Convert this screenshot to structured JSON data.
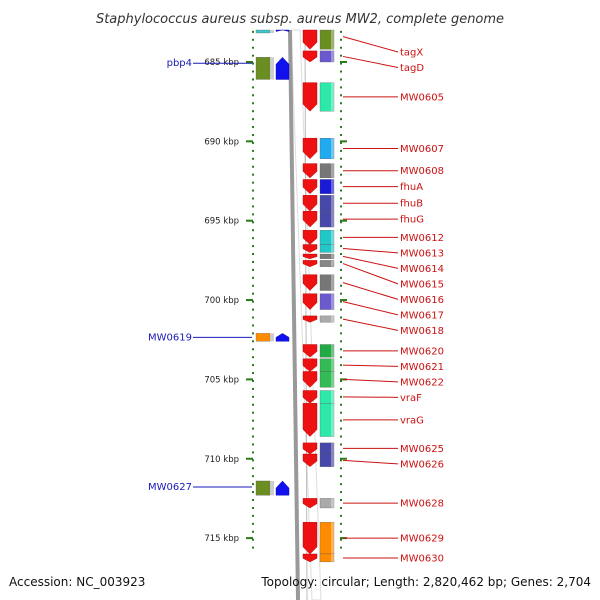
{
  "title": "Staphylococcus aureus subsp. aureus MW2, complete genome",
  "footer": {
    "accession": "Accession: NC_003923",
    "summary": "Topology: circular; Length: 2,820,462 bp; Genes: 2,704"
  },
  "axis": {
    "start_kbp": 682.6,
    "end_kbp": 715.8,
    "ticks": [
      {
        "kbp": 685,
        "label": "685 kbp"
      },
      {
        "kbp": 690,
        "label": "690 kbp"
      },
      {
        "kbp": 695,
        "label": "695 kbp"
      },
      {
        "kbp": 700,
        "label": "700 kbp"
      },
      {
        "kbp": 705,
        "label": "705 kbp"
      },
      {
        "kbp": 710,
        "label": "710 kbp"
      },
      {
        "kbp": 715,
        "label": "715 kbp"
      }
    ]
  },
  "colors": {
    "forward_label": "#1a1ab8",
    "reverse_label": "#cc1111",
    "cds": "#ee1111",
    "forward_cds": "#1111ee",
    "tick": "#2a7a1a",
    "backbone": "#999999"
  },
  "forward_genes": [
    {
      "name": "",
      "start": 682.6,
      "end": 682.9,
      "cog": "#3cc8c8"
    },
    {
      "name": "pbp4",
      "start": 684.7,
      "end": 686.1,
      "cog": "#6b8e23"
    },
    {
      "name": "MW0619",
      "start": 702.1,
      "end": 702.6,
      "cog": "#ff8c00"
    },
    {
      "name": "MW0627",
      "start": 711.4,
      "end": 712.3,
      "cog": "#6b8e23"
    }
  ],
  "reverse_genes": [
    {
      "name": "tagX",
      "start": 682.6,
      "end": 684.2,
      "cog": "#6b8e23"
    },
    {
      "name": "tagD",
      "start": 684.3,
      "end": 685.0,
      "cog": "#6a5acd"
    },
    {
      "name": "MW0605",
      "start": 686.3,
      "end": 688.1,
      "cog": "#2de8a8"
    },
    {
      "name": "MW0607",
      "start": 689.8,
      "end": 691.1,
      "cog": "#22aaee"
    },
    {
      "name": "MW0608",
      "start": 691.4,
      "end": 692.3,
      "cog": "#777777"
    },
    {
      "name": "fhuA",
      "start": 692.4,
      "end": 693.3,
      "cog": "#1a1ad6"
    },
    {
      "name": "fhuB",
      "start": 693.4,
      "end": 694.4,
      "cog": "#4848a8"
    },
    {
      "name": "fhuG",
      "start": 694.4,
      "end": 695.4,
      "cog": "#4848a8"
    },
    {
      "name": "MW0612",
      "start": 695.6,
      "end": 696.5,
      "cog": "#22c8c8"
    },
    {
      "name": "MW0613",
      "start": 696.5,
      "end": 697.0,
      "cog": "#22c8c8"
    },
    {
      "name": "MW0614",
      "start": 697.1,
      "end": 697.4,
      "cog": "#777777"
    },
    {
      "name": "MW0615",
      "start": 697.5,
      "end": 697.9,
      "cog": "#888888"
    },
    {
      "name": "MW0616",
      "start": 698.4,
      "end": 699.4,
      "cog": "#777777"
    },
    {
      "name": "MW0617",
      "start": 699.6,
      "end": 700.6,
      "cog": "#6a5acd"
    },
    {
      "name": "MW0618",
      "start": 701.0,
      "end": 701.4,
      "cog": "#aaaaaa"
    },
    {
      "name": "MW0620",
      "start": 702.8,
      "end": 703.6,
      "cog": "#22aa44"
    },
    {
      "name": "MW0621",
      "start": 703.7,
      "end": 704.5,
      "cog": "#33bb55"
    },
    {
      "name": "MW0622",
      "start": 704.5,
      "end": 705.5,
      "cog": "#33bb55"
    },
    {
      "name": "vraF",
      "start": 705.7,
      "end": 706.5,
      "cog": "#2de8a8"
    },
    {
      "name": "vraG",
      "start": 706.5,
      "end": 708.6,
      "cog": "#2de8a8"
    },
    {
      "name": "MW0625",
      "start": 709.0,
      "end": 709.7,
      "cog": "#4848a8"
    },
    {
      "name": "MW0626",
      "start": 709.7,
      "end": 710.5,
      "cog": "#4848a8"
    },
    {
      "name": "MW0628",
      "start": 712.5,
      "end": 713.1,
      "cog": "#aaaaaa"
    },
    {
      "name": "MW0629",
      "start": 714.0,
      "end": 716.0,
      "cog": "#ff8c00"
    },
    {
      "name": "MW0630",
      "start": 716.0,
      "end": 716.5,
      "cog": "#ff8c00"
    }
  ]
}
